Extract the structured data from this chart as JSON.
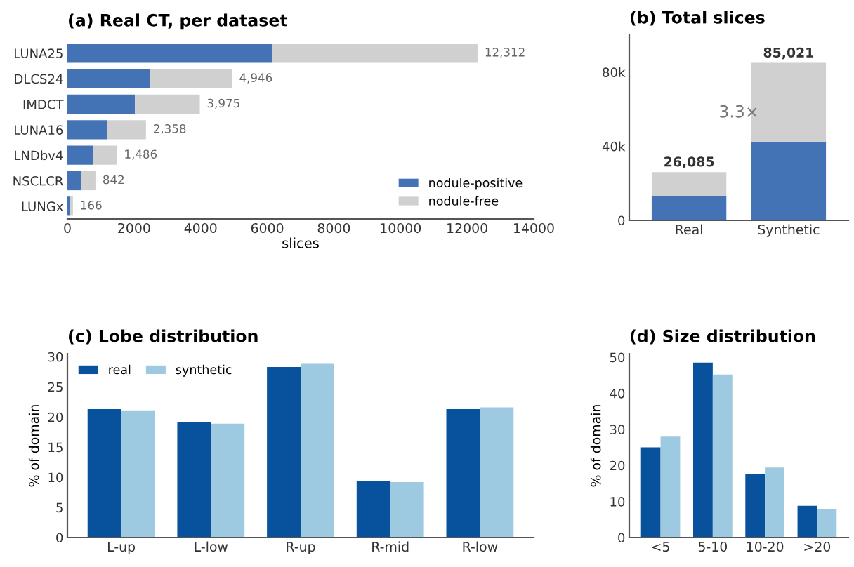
{
  "chart_data": [
    {
      "type": "bar",
      "title": "(a) Real CT, per dataset",
      "xlabel": "slices",
      "orientation": "horizontal",
      "stacked": true,
      "categories": [
        "LUNA25",
        "DLCS24",
        "IMDCT",
        "LUNA16",
        "LNDbv4",
        "NSCLCR",
        "LUNGx"
      ],
      "series": [
        {
          "name": "nodule-positive",
          "color": "#4473b5",
          "values": [
            6150,
            2470,
            2030,
            1200,
            760,
            420,
            90
          ]
        },
        {
          "name": "nodule-free",
          "color": "#d0d0d0",
          "values": [
            6162,
            2476,
            1945,
            1158,
            726,
            422,
            76
          ]
        }
      ],
      "totals": [
        "12,312",
        "4,946",
        "3,975",
        "2,358",
        "1,486",
        "842",
        "166"
      ],
      "xlim": [
        0,
        14000
      ],
      "xticks": [
        0,
        2000,
        4000,
        6000,
        8000,
        10000,
        12000,
        14000
      ],
      "legend": "bottom right",
      "grid": false
    },
    {
      "type": "bar",
      "title": "(b) Total slices",
      "stacked": true,
      "categories": [
        "Real",
        "Synthetic"
      ],
      "series": [
        {
          "color": "#4473b5",
          "values": [
            13000,
            42500
          ]
        },
        {
          "color": "#d0d0d0",
          "values": [
            13085,
            42521
          ]
        }
      ],
      "totals": [
        "26,085",
        "85,021"
      ],
      "ylim": [
        0,
        100000
      ],
      "yticks": [
        0,
        {
          "value": 40000,
          "label": "40k"
        },
        {
          "value": 80000,
          "label": "80k"
        }
      ],
      "annotations": [
        "3.3×"
      ],
      "grid": false
    },
    {
      "type": "bar",
      "title": "(c) Lobe distribution",
      "ylabel": "% of domain",
      "categories": [
        "L-up",
        "L-low",
        "R-up",
        "R-mid",
        "R-low"
      ],
      "series": [
        {
          "name": "real",
          "color": "#08519c",
          "values": [
            21.3,
            19.1,
            28.3,
            9.4,
            21.3
          ]
        },
        {
          "name": "synthetic",
          "color": "#9ecae1",
          "values": [
            21.1,
            18.9,
            28.8,
            9.2,
            21.6
          ]
        }
      ],
      "ylim": [
        0,
        30.5
      ],
      "yticks": [
        0,
        5,
        10,
        15,
        20,
        25,
        30
      ],
      "legend": "top left",
      "grid": false
    },
    {
      "type": "bar",
      "title": "(d) Size distribution",
      "ylabel": "% of domain",
      "categories": [
        "<5",
        "5-10",
        "10-20",
        ">20"
      ],
      "series": [
        {
          "color": "#08519c",
          "values": [
            25.0,
            48.5,
            17.6,
            8.8
          ]
        },
        {
          "color": "#9ecae1",
          "values": [
            28.0,
            45.2,
            19.4,
            7.8
          ]
        }
      ],
      "ylim": [
        0,
        51
      ],
      "yticks": [
        0,
        10,
        20,
        30,
        40,
        50
      ],
      "grid": false
    }
  ]
}
